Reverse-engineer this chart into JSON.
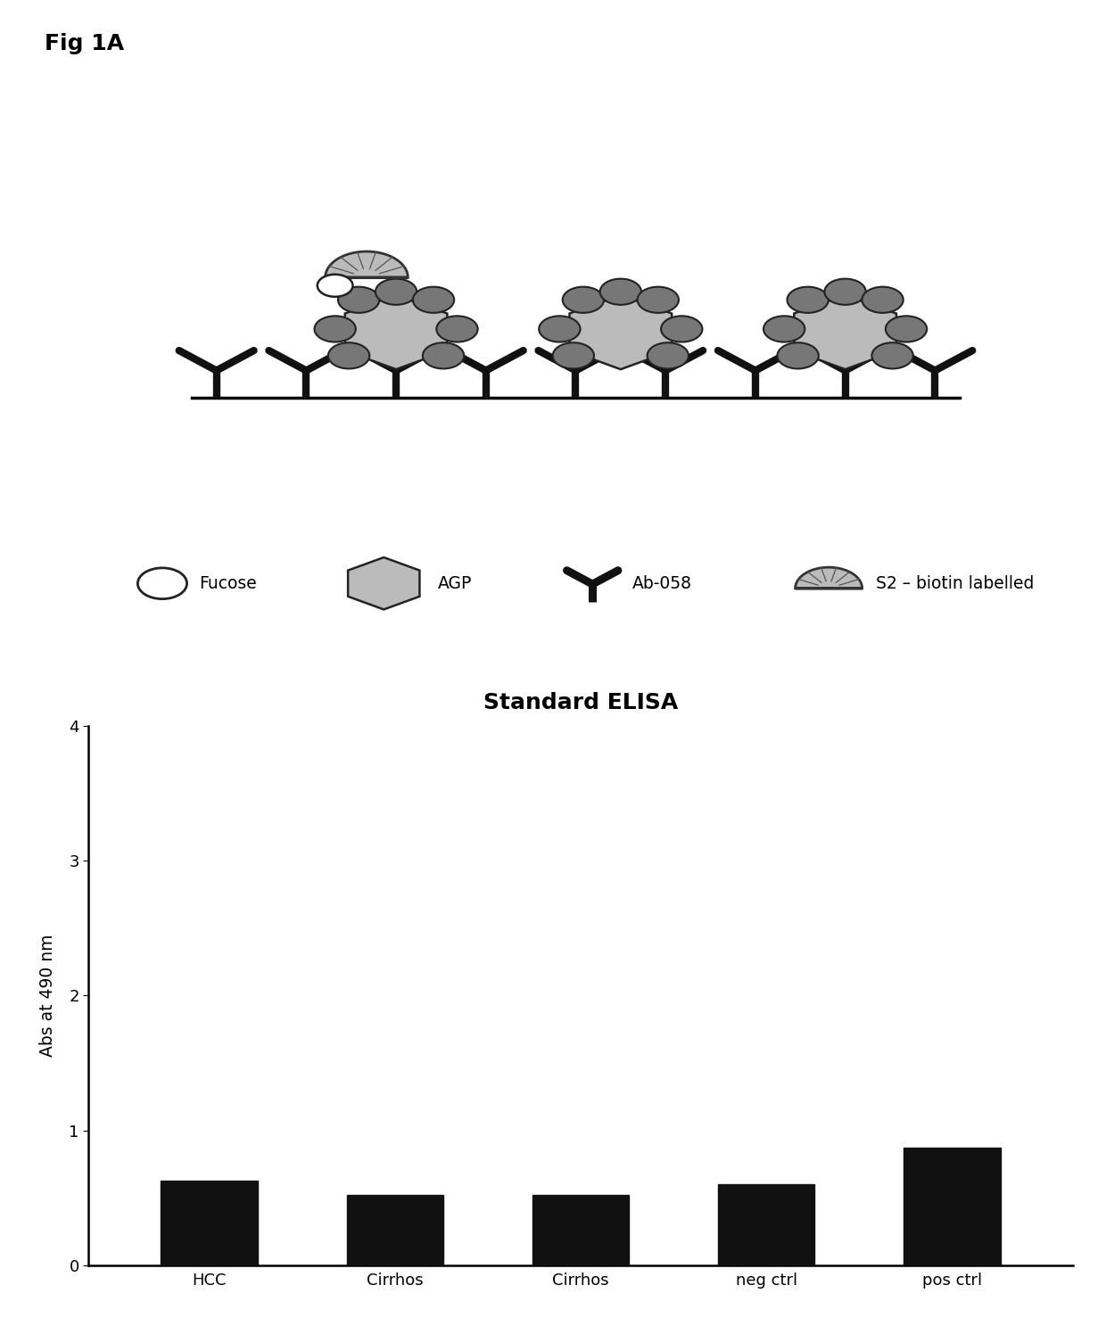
{
  "fig_label": "Fig 1A",
  "bar_title": "Standard ELISA",
  "bar_categories": [
    "HCC",
    "Cirrhos",
    "Cirrhos",
    "neg ctrl",
    "pos ctrl"
  ],
  "bar_values": [
    0.63,
    0.52,
    0.52,
    0.6,
    0.87
  ],
  "bar_color": "#111111",
  "ylim": [
    0,
    4
  ],
  "yticks": [
    0,
    1,
    2,
    3,
    4
  ],
  "ylabel": "Abs at 490 nm",
  "hex_fill": "#bbbbbb",
  "hex_edge": "#222222",
  "hex_lw": 1.8,
  "dark_circle_fill": "#777777",
  "dark_circle_edge": "#222222",
  "white_circle_fill": "#ffffff",
  "arc_fill": "#bbbbbb",
  "arc_edge": "#333333",
  "antibody_color": "#111111",
  "background_color": "white",
  "legend_labels": [
    "Fucose",
    "AGP",
    "Ab-058",
    "S2 – biotin labelled"
  ]
}
